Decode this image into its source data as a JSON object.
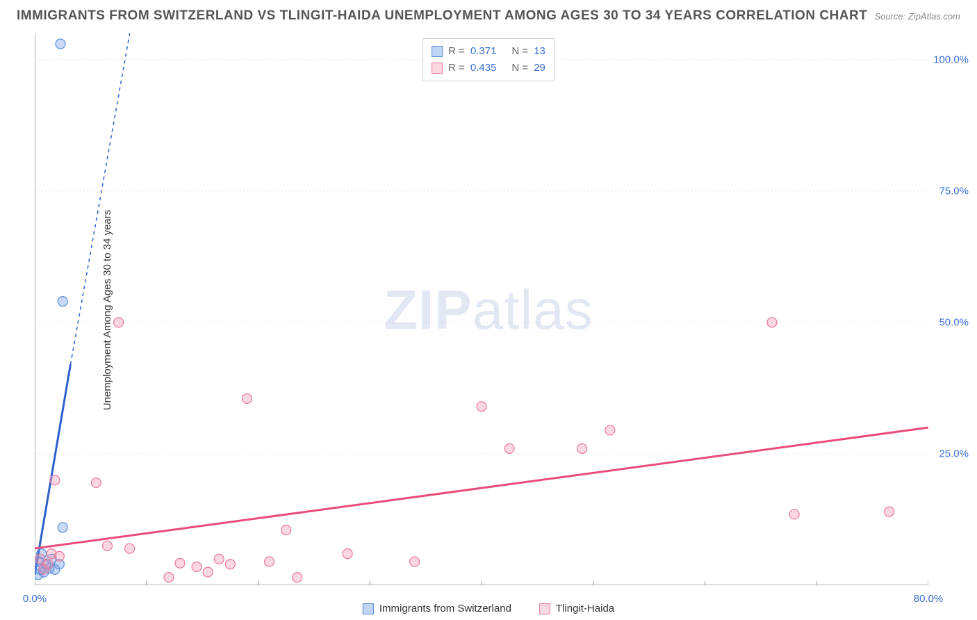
{
  "title": "IMMIGRANTS FROM SWITZERLAND VS TLINGIT-HAIDA UNEMPLOYMENT AMONG AGES 30 TO 34 YEARS CORRELATION CHART",
  "source_prefix": "Source: ",
  "source_name": "ZipAtlas.com",
  "watermark_bold": "ZIP",
  "watermark_light": "atlas",
  "ylabel": "Unemployment Among Ages 30 to 34 years",
  "legend_top": {
    "r_prefix": "R  =",
    "n_prefix": "N  =",
    "series": [
      {
        "swatch": "sw-blue",
        "r": "0.371",
        "n": "13"
      },
      {
        "swatch": "sw-pink",
        "r": "0.435",
        "n": "29"
      }
    ]
  },
  "legend_bottom": [
    {
      "swatch": "sw-blue",
      "label": "Immigrants from Switzerland"
    },
    {
      "swatch": "sw-pink",
      "label": "Tlingit-Haida"
    }
  ],
  "chart": {
    "type": "scatter",
    "xlim": [
      0,
      80
    ],
    "ylim": [
      0,
      105
    ],
    "x_ticks": [
      0,
      10,
      20,
      30,
      40,
      50,
      60,
      70,
      80
    ],
    "x_tick_labels": {
      "0": "0.0%",
      "80": "80.0%"
    },
    "y_ticks": [
      25,
      50,
      75,
      100
    ],
    "y_tick_labels": {
      "25": "25.0%",
      "50": "50.0%",
      "75": "75.0%",
      "100": "100.0%"
    },
    "grid_color": "#e5e5e5",
    "axis_color": "#999",
    "background_color": "#ffffff",
    "marker_radius": 7,
    "series": [
      {
        "id": "blue",
        "fill": "rgba(100,150,230,0.35)",
        "stroke": "#5b8dd6",
        "stroke_width": 1.2,
        "trend_color": "#2c5fc9",
        "trend_width": 3,
        "trend_dash": "5,5",
        "trend": {
          "x1": 0,
          "y1": 2,
          "x2": 3.2,
          "y2": 42,
          "x2_ext": 8.5,
          "y2_ext": 105
        },
        "points": [
          [
            0.3,
            2
          ],
          [
            0.5,
            3
          ],
          [
            0.8,
            2.5
          ],
          [
            1.0,
            4
          ],
          [
            1.3,
            3.2
          ],
          [
            1.5,
            5
          ],
          [
            0.6,
            6
          ],
          [
            0.4,
            4.5
          ],
          [
            1.8,
            3
          ],
          [
            2.2,
            4
          ],
          [
            2.5,
            11
          ],
          [
            2.5,
            54
          ],
          [
            2.3,
            103
          ]
        ]
      },
      {
        "id": "pink",
        "fill": "rgba(240,140,170,0.35)",
        "stroke": "#e77aa0",
        "stroke_width": 1.2,
        "trend_color": "#e94b7a",
        "trend_width": 3,
        "trend_dash": "",
        "trend": {
          "x1": 0,
          "y1": 7,
          "x2": 80,
          "y2": 30
        },
        "points": [
          [
            0.5,
            5
          ],
          [
            1.2,
            4
          ],
          [
            1.5,
            6
          ],
          [
            1.8,
            20
          ],
          [
            5.5,
            19.5
          ],
          [
            7.5,
            50
          ],
          [
            6.5,
            7.5
          ],
          [
            8.5,
            7
          ],
          [
            12,
            1.5
          ],
          [
            13,
            4.2
          ],
          [
            14.5,
            3.5
          ],
          [
            15.5,
            2.5
          ],
          [
            16.5,
            5
          ],
          [
            19,
            35.5
          ],
          [
            21,
            4.5
          ],
          [
            22.5,
            10.5
          ],
          [
            23.5,
            1.5
          ],
          [
            28,
            6
          ],
          [
            34,
            4.5
          ],
          [
            40,
            34
          ],
          [
            42.5,
            26
          ],
          [
            49,
            26
          ],
          [
            51.5,
            29.5
          ],
          [
            66,
            50
          ],
          [
            68,
            13.5
          ],
          [
            76.5,
            14
          ],
          [
            0.8,
            3
          ],
          [
            2.2,
            5.5
          ],
          [
            17.5,
            4
          ]
        ]
      }
    ]
  }
}
